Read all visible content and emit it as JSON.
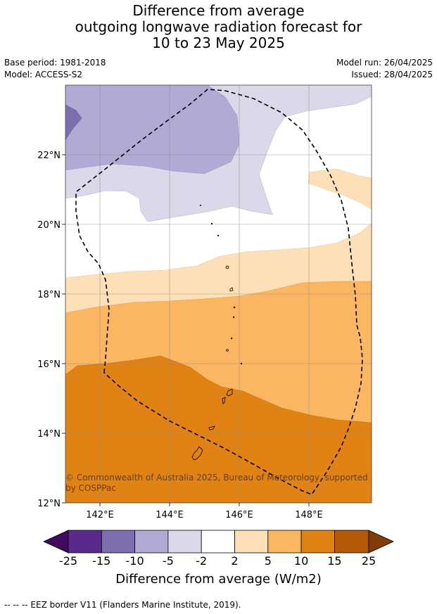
{
  "title": {
    "line1": "Difference from average",
    "line2": "outgoing longwave radiation forecast for",
    "line3": "10 to 23 May 2025"
  },
  "meta": {
    "base_period": "Base period: 1981-2018",
    "model": "Model: ACCESS-S2",
    "model_run": "Model run: 26/04/2025",
    "issued": "Issued: 28/04/2025"
  },
  "map": {
    "lon_ticks": [
      "142°E",
      "144°E",
      "146°E",
      "148°E"
    ],
    "lat_ticks": [
      "22°N",
      "20°N",
      "18°N",
      "16°N",
      "14°N",
      "12°N"
    ],
    "copyright": "© Commonwealth of Australia 2025, Bureau of Meteorology, supported by COSPPac"
  },
  "colorbar": {
    "ticks": [
      "-25",
      "-15",
      "-10",
      "-5",
      "-2",
      "2",
      "5",
      "10",
      "15",
      "25"
    ],
    "colors": [
      "#3f0b5c",
      "#5a2a8a",
      "#7d6eae",
      "#b0aad4",
      "#d9d9ea",
      "#ffffff",
      "#fde0b8",
      "#fbb662",
      "#e08214",
      "#b35806",
      "#7f3b08"
    ],
    "title": "Difference from average (W/m2)"
  },
  "footnote": "--  --  -- EEZ border V11 (Flanders Marine Institute, 2019)."
}
